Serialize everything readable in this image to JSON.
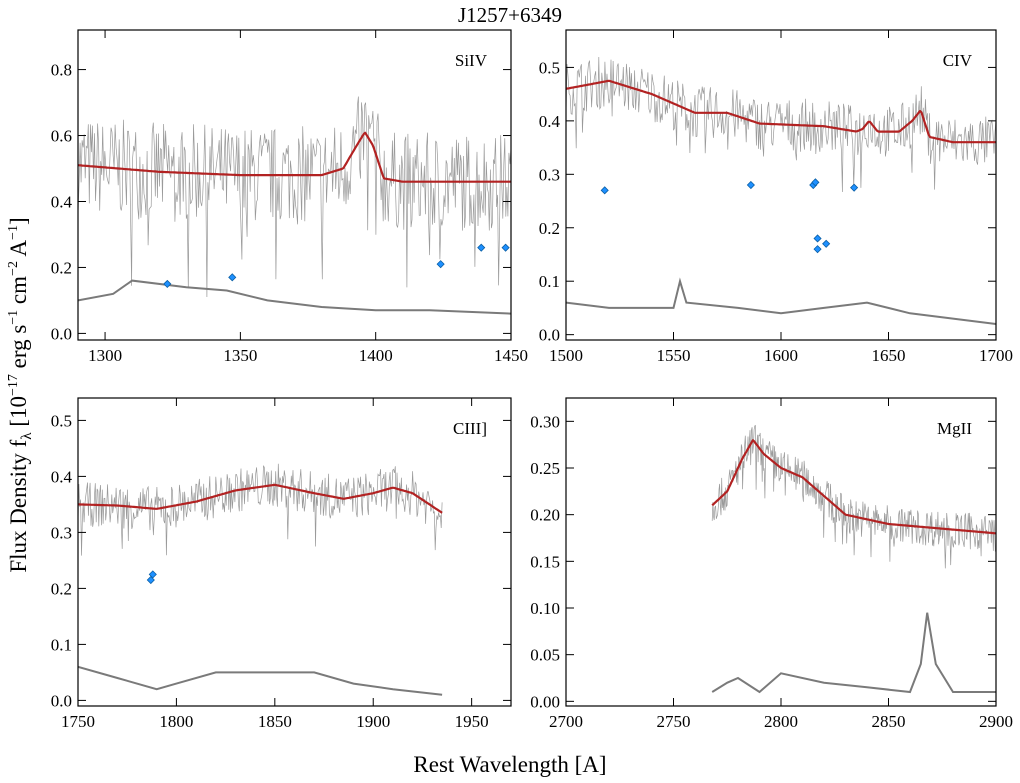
{
  "title": "J1257+6349",
  "xlabel": "Rest Wavelength [A]",
  "ylabel": "Flux Density fλ [10⁻¹⁷ erg s⁻¹ cm⁻² A⁻¹]",
  "ylabel_parts": {
    "a": "Flux Density f",
    "sub": "λ",
    "b": " [10",
    "sup1": "−17",
    "c": " erg s",
    "sup2": "−1",
    "d": " cm",
    "sup3": "−2",
    "e": " A",
    "sup4": "−1",
    "f": "]"
  },
  "colors": {
    "spectrum": "#9a9a9a",
    "model": "#b22222",
    "error": "#7a7a7a",
    "absorber": "#1e90ff",
    "axes": "#000000"
  },
  "chart_data": [
    {
      "type": "line",
      "label": "SiIV",
      "xlim": [
        1290,
        1450
      ],
      "ylim": [
        -0.02,
        0.92
      ],
      "xticks": [
        1300,
        1350,
        1400,
        1450
      ],
      "yticks": [
        0.0,
        0.2,
        0.4,
        0.6,
        0.8
      ],
      "ytick_labels": [
        "0.0",
        "0.2",
        "0.4",
        "0.6",
        "0.8"
      ],
      "spectrum_noise": 0.15,
      "model": {
        "x": [
          1290,
          1320,
          1350,
          1380,
          1388,
          1393,
          1396,
          1399,
          1403,
          1410,
          1430,
          1450
        ],
        "y": [
          0.51,
          0.49,
          0.48,
          0.48,
          0.5,
          0.57,
          0.61,
          0.57,
          0.47,
          0.46,
          0.46,
          0.46
        ]
      },
      "error": {
        "x": [
          1290,
          1303,
          1310,
          1330,
          1345,
          1360,
          1380,
          1400,
          1420,
          1450
        ],
        "y": [
          0.1,
          0.12,
          0.16,
          0.14,
          0.13,
          0.1,
          0.08,
          0.07,
          0.07,
          0.06
        ]
      },
      "absorbers": [
        [
          1323,
          0.15
        ],
        [
          1347,
          0.17
        ],
        [
          1424,
          0.21
        ],
        [
          1439,
          0.26
        ],
        [
          1448,
          0.26
        ]
      ]
    },
    {
      "type": "line",
      "label": "CIV",
      "xlim": [
        1500,
        1700
      ],
      "ylim": [
        -0.01,
        0.57
      ],
      "xticks": [
        1500,
        1550,
        1600,
        1650,
        1700
      ],
      "yticks": [
        0.0,
        0.1,
        0.2,
        0.3,
        0.4,
        0.5
      ],
      "ytick_labels": [
        "0.0",
        "0.1",
        "0.2",
        "0.3",
        "0.4",
        "0.5"
      ],
      "spectrum_noise": 0.05,
      "model": {
        "x": [
          1500,
          1520,
          1540,
          1560,
          1575,
          1590,
          1620,
          1635,
          1638,
          1641,
          1645,
          1655,
          1661,
          1665,
          1669,
          1680,
          1700
        ],
        "y": [
          0.46,
          0.475,
          0.45,
          0.415,
          0.415,
          0.395,
          0.39,
          0.38,
          0.385,
          0.4,
          0.38,
          0.38,
          0.4,
          0.42,
          0.37,
          0.36,
          0.36
        ]
      },
      "error": {
        "x": [
          1500,
          1520,
          1550,
          1553,
          1556,
          1580,
          1600,
          1620,
          1640,
          1660,
          1700
        ],
        "y": [
          0.06,
          0.05,
          0.05,
          0.1,
          0.06,
          0.05,
          0.04,
          0.05,
          0.06,
          0.04,
          0.02
        ]
      },
      "absorbers": [
        [
          1518,
          0.27
        ],
        [
          1586,
          0.28
        ],
        [
          1615,
          0.28
        ],
        [
          1616,
          0.285
        ],
        [
          1617,
          0.18
        ],
        [
          1617,
          0.16
        ],
        [
          1621,
          0.17
        ],
        [
          1634,
          0.275
        ]
      ]
    },
    {
      "type": "line",
      "label": "CIII]",
      "xlim": [
        1750,
        1970
      ],
      "ylim": [
        -0.01,
        0.54
      ],
      "xticks": [
        1750,
        1800,
        1850,
        1900,
        1950
      ],
      "yticks": [
        0.0,
        0.1,
        0.2,
        0.3,
        0.4,
        0.5
      ],
      "ytick_labels": [
        "0.0",
        "0.1",
        "0.2",
        "0.3",
        "0.4",
        "0.5"
      ],
      "spectrum_noise": 0.04,
      "spectrum_xrange": [
        1750,
        1935
      ],
      "model": {
        "x": [
          1750,
          1770,
          1790,
          1810,
          1830,
          1850,
          1870,
          1885,
          1900,
          1910,
          1920,
          1935
        ],
        "y": [
          0.35,
          0.348,
          0.342,
          0.355,
          0.375,
          0.385,
          0.37,
          0.36,
          0.37,
          0.38,
          0.37,
          0.335
        ]
      },
      "error": {
        "x": [
          1750,
          1770,
          1790,
          1800,
          1820,
          1830,
          1850,
          1870,
          1890,
          1910,
          1935
        ],
        "y": [
          0.06,
          0.04,
          0.02,
          0.03,
          0.05,
          0.05,
          0.05,
          0.05,
          0.03,
          0.02,
          0.01
        ]
      },
      "absorbers": [
        [
          1787,
          0.215
        ],
        [
          1788,
          0.225
        ]
      ]
    },
    {
      "type": "line",
      "label": "MgII",
      "xlim": [
        2700,
        2900
      ],
      "ylim": [
        -0.005,
        0.325
      ],
      "xticks": [
        2700,
        2750,
        2800,
        2850,
        2900
      ],
      "yticks": [
        0.0,
        0.05,
        0.1,
        0.15,
        0.2,
        0.25,
        0.3
      ],
      "ytick_labels": [
        "0.00",
        "0.05",
        "0.10",
        "0.15",
        "0.20",
        "0.25",
        "0.30"
      ],
      "spectrum_noise": 0.02,
      "spectrum_xrange": [
        2768,
        2900
      ],
      "model": {
        "x": [
          2768,
          2775,
          2782,
          2787,
          2792,
          2800,
          2810,
          2820,
          2830,
          2850,
          2870,
          2900
        ],
        "y": [
          0.21,
          0.225,
          0.26,
          0.28,
          0.265,
          0.25,
          0.24,
          0.22,
          0.2,
          0.19,
          0.186,
          0.18
        ]
      },
      "error": {
        "x": [
          2768,
          2775,
          2780,
          2790,
          2800,
          2820,
          2840,
          2860,
          2865,
          2868,
          2872,
          2880,
          2900
        ],
        "y": [
          0.01,
          0.02,
          0.025,
          0.01,
          0.03,
          0.02,
          0.015,
          0.01,
          0.04,
          0.095,
          0.04,
          0.01,
          0.01
        ]
      },
      "absorbers": []
    }
  ]
}
